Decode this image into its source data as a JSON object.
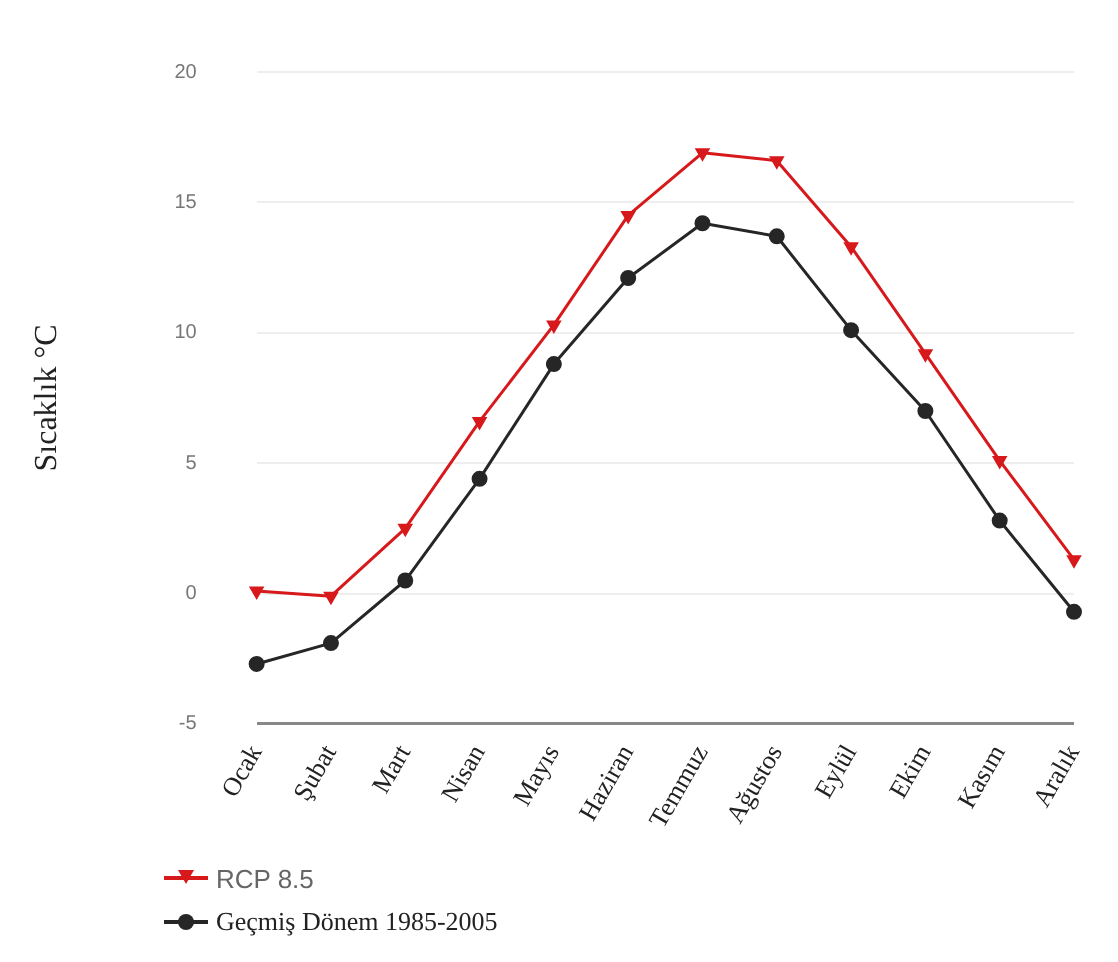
{
  "chart_data": {
    "type": "line",
    "ylabel": "Sıcaklık °C",
    "categories": [
      "Ocak",
      "Şubat",
      "Mart",
      "Nisan",
      "Mayıs",
      "Haziran",
      "Temmuz",
      "Ağustos",
      "Eylül",
      "Ekim",
      "Kasım",
      "Aralık"
    ],
    "series": [
      {
        "name": "RCP 8.5",
        "color": "#d7191c",
        "marker": "triangle",
        "values": [
          0.1,
          -0.1,
          2.5,
          6.6,
          10.3,
          14.5,
          16.9,
          16.6,
          13.3,
          9.2,
          5.1,
          1.3
        ]
      },
      {
        "name": "Geçmiş Dönem 1985-2005",
        "color": "#262626",
        "marker": "circle",
        "values": [
          -2.7,
          -1.9,
          0.5,
          4.4,
          8.8,
          12.1,
          14.2,
          13.7,
          10.1,
          7.0,
          2.8,
          -0.7
        ]
      }
    ],
    "ylim": [
      -5,
      20
    ],
    "yticks": [
      -5,
      0,
      5,
      10,
      15,
      20
    ],
    "grid": "y",
    "legend": "bottom left",
    "line_style": "solid"
  }
}
